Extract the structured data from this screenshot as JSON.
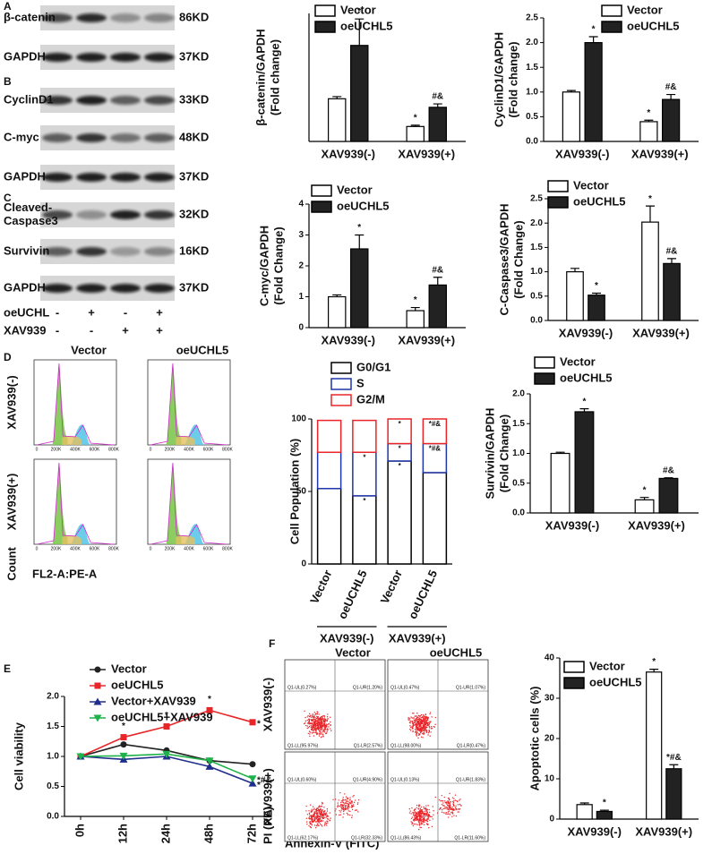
{
  "panel_labels": [
    "A",
    "B",
    "C",
    "D",
    "E",
    "F"
  ],
  "blots": {
    "rows": [
      {
        "label": [
          "β-catenin"
        ],
        "kd": "86KD"
      },
      {
        "label": [
          "GAPDH"
        ],
        "kd": "37KD"
      },
      {
        "label": [
          "CyclinD1"
        ],
        "kd": "33KD"
      },
      {
        "label": [
          "C-myc"
        ],
        "kd": "48KD"
      },
      {
        "label": [
          "GAPDH"
        ],
        "kd": "37KD"
      },
      {
        "label": [
          "Cleaved-",
          "Caspase3"
        ],
        "kd": "32KD"
      },
      {
        "label": [
          "Survivin"
        ],
        "kd": "16KD"
      },
      {
        "label": [
          "GAPDH"
        ],
        "kd": "37KD"
      }
    ],
    "treatments": [
      {
        "label": "oeUCHL",
        "marks": [
          "-",
          "+",
          "-",
          "+"
        ]
      },
      {
        "label": "XAV939",
        "marks": [
          "-",
          "-",
          "+",
          "+"
        ]
      }
    ]
  },
  "cell_cycle_flow": {
    "columns": [
      "Vector",
      "oeUCHL5"
    ],
    "rows": [
      "XAV939(-)",
      "XAV939(+)"
    ],
    "xticks": [
      "0",
      "200K",
      "400K",
      "600K",
      "800K"
    ],
    "xlabel": "FL2-A:PE-A",
    "ylabel": "Count"
  },
  "apoptosis_flow": {
    "columns": [
      "Vector",
      "oeUCHL5"
    ],
    "rows": [
      "XAV939(-)",
      "XAV939(+)"
    ],
    "quadrants": [
      [
        "Q1-UL(0.27%)",
        "Q1-UR(1.20%)",
        "Q1-LL(95.97%)",
        "Q1-LR(2.57%)"
      ],
      [
        "Q1-UL(0.47%)",
        "Q1-UR(1.07%)",
        "Q1-LL(98.00%)",
        "Q1-LR(0.47%)"
      ],
      [
        "Q1-UL(0.60%)",
        "Q1-UR(4.90%)",
        "Q1-LL(62.17%)",
        "Q1-LR(32.33%)"
      ],
      [
        "Q1-UL(0.13%)",
        "Q1-UR(1.83%)",
        "Q1-LL(86.43%)",
        "Q1-LR(11.60%)"
      ]
    ],
    "xlabel": "Annexin-V (FITC)",
    "ylabel": "PI (PE)"
  },
  "chart_data": [
    {
      "type": "bar",
      "ylabel": [
        "β-catenin/GAPDH",
        "(Fold change)"
      ],
      "categories": [
        "XAV939(-)",
        "XAV939(+)"
      ],
      "ylim": [
        0,
        3
      ],
      "series": [
        {
          "name": "Vector",
          "color": "#ffffff",
          "values": [
            1.0,
            0.35
          ],
          "errors": [
            0.05,
            0.03
          ],
          "annotations": [
            null,
            "*"
          ]
        },
        {
          "name": "oeUCHL5",
          "color": "#222222",
          "values": [
            2.25,
            0.8
          ],
          "errors": [
            0.62,
            0.08
          ],
          "annotations": [
            "*",
            "#&"
          ]
        }
      ]
    },
    {
      "type": "bar",
      "ylabel": [
        "CyclinD1/GAPDH",
        "(Fold change)"
      ],
      "categories": [
        "XAV939(-)",
        "XAV939(+)"
      ],
      "ylim": [
        0,
        2.5
      ],
      "yticks": [
        {
          "value": 0,
          "label": "0.0"
        },
        {
          "value": 0.5,
          "label": "0.5"
        },
        {
          "value": 1,
          "label": "1.0"
        },
        {
          "value": 1.5,
          "label": "1.5"
        },
        {
          "value": 2,
          "label": "2.0"
        },
        {
          "value": 2.5,
          "label": "2.5"
        }
      ],
      "series": [
        {
          "name": "Vector",
          "color": "#ffffff",
          "values": [
            1.0,
            0.4
          ],
          "errors": [
            0.03,
            0.03
          ],
          "annotations": [
            null,
            "*"
          ]
        },
        {
          "name": "oeUCHL5",
          "color": "#222222",
          "values": [
            2.0,
            0.85
          ],
          "errors": [
            0.12,
            0.1
          ],
          "annotations": [
            "*",
            "#&"
          ]
        }
      ]
    },
    {
      "type": "bar",
      "ylabel": [
        "C-myc/GAPDH",
        "(Fold Change)"
      ],
      "categories": [
        "XAV939(-)",
        "XAV939(+)"
      ],
      "ylim": [
        0,
        4
      ],
      "yticks": [
        0,
        1,
        2,
        3,
        4
      ],
      "series": [
        {
          "name": "Vector",
          "color": "#ffffff",
          "values": [
            1.0,
            0.55
          ],
          "errors": [
            0.06,
            0.1
          ],
          "annotations": [
            null,
            "*"
          ]
        },
        {
          "name": "oeUCHL5",
          "color": "#222222",
          "values": [
            2.55,
            1.38
          ],
          "errors": [
            0.45,
            0.25
          ],
          "annotations": [
            "*",
            "#&"
          ]
        }
      ]
    },
    {
      "type": "bar",
      "ylabel": [
        "C-Caspase3/GAPDH",
        "(Fold Change)"
      ],
      "categories": [
        "XAV939(-)",
        "XAV939(+)"
      ],
      "ylim": [
        0,
        2.5
      ],
      "yticks": [
        {
          "value": 0,
          "label": "0.0"
        },
        {
          "value": 0.5,
          "label": "0.5"
        },
        {
          "value": 1,
          "label": "1.0"
        },
        {
          "value": 1.5,
          "label": "1.5"
        },
        {
          "value": 2,
          "label": "2.0"
        },
        {
          "value": 2.5,
          "label": "2.5"
        }
      ],
      "series": [
        {
          "name": "Vector",
          "color": "#ffffff",
          "values": [
            1.0,
            2.02
          ],
          "errors": [
            0.07,
            0.33
          ],
          "annotations": [
            null,
            "*"
          ]
        },
        {
          "name": "oeUCHL5",
          "color": "#222222",
          "values": [
            0.52,
            1.17
          ],
          "errors": [
            0.04,
            0.1
          ],
          "annotations": [
            "*",
            "#&"
          ]
        }
      ]
    },
    {
      "type": "stacked_bar",
      "ylabel": [
        "Cell Population (%)"
      ],
      "categories": [
        "Vector",
        "oeUCHL5",
        "Vector",
        "oeUCHL5"
      ],
      "groups": [
        "XAV939(-)",
        "XAV939(+)"
      ],
      "ylim": [
        0,
        100
      ],
      "yticks": [
        0,
        50,
        100
      ],
      "series": [
        {
          "name": "G0/G1",
          "color": "#000000",
          "values": [
            52,
            47,
            71,
            63
          ],
          "annotations": [
            null,
            "*",
            "*",
            null
          ]
        },
        {
          "name": "S",
          "color": "#1f35a8",
          "values": [
            25,
            30,
            12,
            20
          ],
          "annotations": [
            null,
            "*",
            "*",
            "*#&"
          ]
        },
        {
          "name": "G2/M",
          "color": "#e8262a",
          "values": [
            22,
            22,
            17,
            17
          ],
          "annotations": [
            null,
            null,
            "*",
            "*#&"
          ]
        }
      ]
    },
    {
      "type": "bar",
      "ylabel": [
        "Survivin/GAPDH",
        "(Fold Change)"
      ],
      "categories": [
        "XAV939(-)",
        "XAV939(+)"
      ],
      "ylim": [
        0,
        2
      ],
      "yticks": [
        {
          "value": 0,
          "label": "0.0"
        },
        {
          "value": 0.5,
          "label": "0.5"
        },
        {
          "value": 1,
          "label": "1.0"
        },
        {
          "value": 1.5,
          "label": "1.5"
        },
        {
          "value": 2,
          "label": "2.0"
        }
      ],
      "series": [
        {
          "name": "Vector",
          "color": "#ffffff",
          "values": [
            1.0,
            0.22
          ],
          "errors": [
            0.02,
            0.04
          ],
          "annotations": [
            null,
            "*"
          ]
        },
        {
          "name": "oeUCHL5",
          "color": "#222222",
          "values": [
            1.7,
            0.58
          ],
          "errors": [
            0.05,
            0.01
          ],
          "annotations": [
            "*",
            "#&"
          ]
        }
      ]
    },
    {
      "type": "line",
      "ylabel": [
        "Cell viability"
      ],
      "categories": [
        "0h",
        "12h",
        "24h",
        "48h",
        "72h"
      ],
      "ylim": [
        0,
        2
      ],
      "yticks": [
        {
          "value": 0,
          "label": "0.0"
        },
        {
          "value": 0.5,
          "label": "0.5"
        },
        {
          "value": 1,
          "label": "1.0"
        },
        {
          "value": 1.5,
          "label": "1.5"
        },
        {
          "value": 2,
          "label": "2.0"
        }
      ],
      "series": [
        {
          "name": "Vector",
          "color": "#222222",
          "marker": "circle",
          "values": [
            1.0,
            1.2,
            1.1,
            0.93,
            0.87
          ],
          "annotations": [
            null,
            null,
            null,
            null,
            null
          ]
        },
        {
          "name": "oeUCHL5",
          "color": "#e8262a",
          "marker": "square",
          "values": [
            1.0,
            1.32,
            1.5,
            1.77,
            1.57
          ],
          "annotations": [
            null,
            "*",
            "*",
            "*",
            "*"
          ]
        },
        {
          "name": "Vector+XAV939",
          "color": "#1f2d8c",
          "marker": "triangle",
          "values": [
            1.0,
            0.95,
            1.0,
            0.83,
            0.55
          ],
          "annotations": [
            null,
            null,
            null,
            null,
            "*"
          ]
        },
        {
          "name": "oeUCHL5+XAV939",
          "color": "#1fb14a",
          "marker": "triangle-down",
          "values": [
            1.0,
            1.01,
            1.04,
            0.93,
            0.63
          ],
          "annotations": [
            null,
            null,
            null,
            null,
            "*#&"
          ]
        }
      ]
    },
    {
      "type": "bar",
      "ylabel": [
        "Apoptotic cells (%)"
      ],
      "categories": [
        "XAV939(-)",
        "XAV939(+)"
      ],
      "ylim": [
        0,
        40
      ],
      "yticks": [
        0,
        10,
        20,
        30,
        40
      ],
      "series": [
        {
          "name": "Vector",
          "color": "#ffffff",
          "values": [
            3.6,
            36.5
          ],
          "errors": [
            0.4,
            0.7
          ],
          "annotations": [
            null,
            "*"
          ]
        },
        {
          "name": "oeUCHL5",
          "color": "#222222",
          "values": [
            1.9,
            12.5
          ],
          "errors": [
            0.3,
            1.0
          ],
          "annotations": [
            "*",
            "*#&"
          ]
        }
      ]
    }
  ]
}
